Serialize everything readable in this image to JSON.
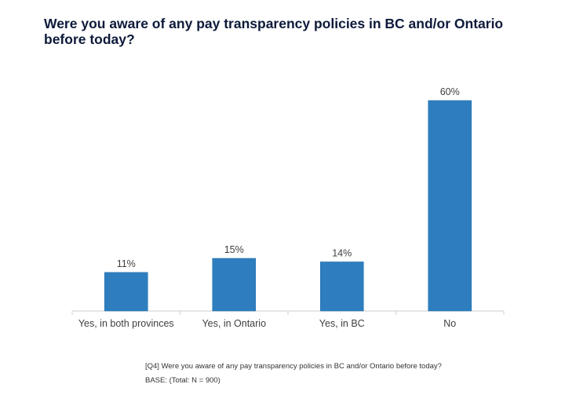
{
  "chart_data": {
    "type": "bar",
    "title": "Were you aware of any pay transparency policies in BC and/or Ontario before today?",
    "categories": [
      "Yes, in both provinces",
      "Yes, in Ontario",
      "Yes, in BC",
      "No"
    ],
    "values": [
      11,
      15,
      14,
      60
    ],
    "data_labels": [
      "11%",
      "15%",
      "14%",
      "60%"
    ],
    "xlabel": "",
    "ylabel": "",
    "ylim": [
      0,
      60
    ],
    "unit": "%",
    "grid": false,
    "bar_color": "#2e7ebf"
  },
  "footnotes": {
    "question": "[Q4] Were you aware of any pay transparency policies in BC and/or Ontario before today?",
    "base": "BASE: (Total: N = 900)"
  }
}
